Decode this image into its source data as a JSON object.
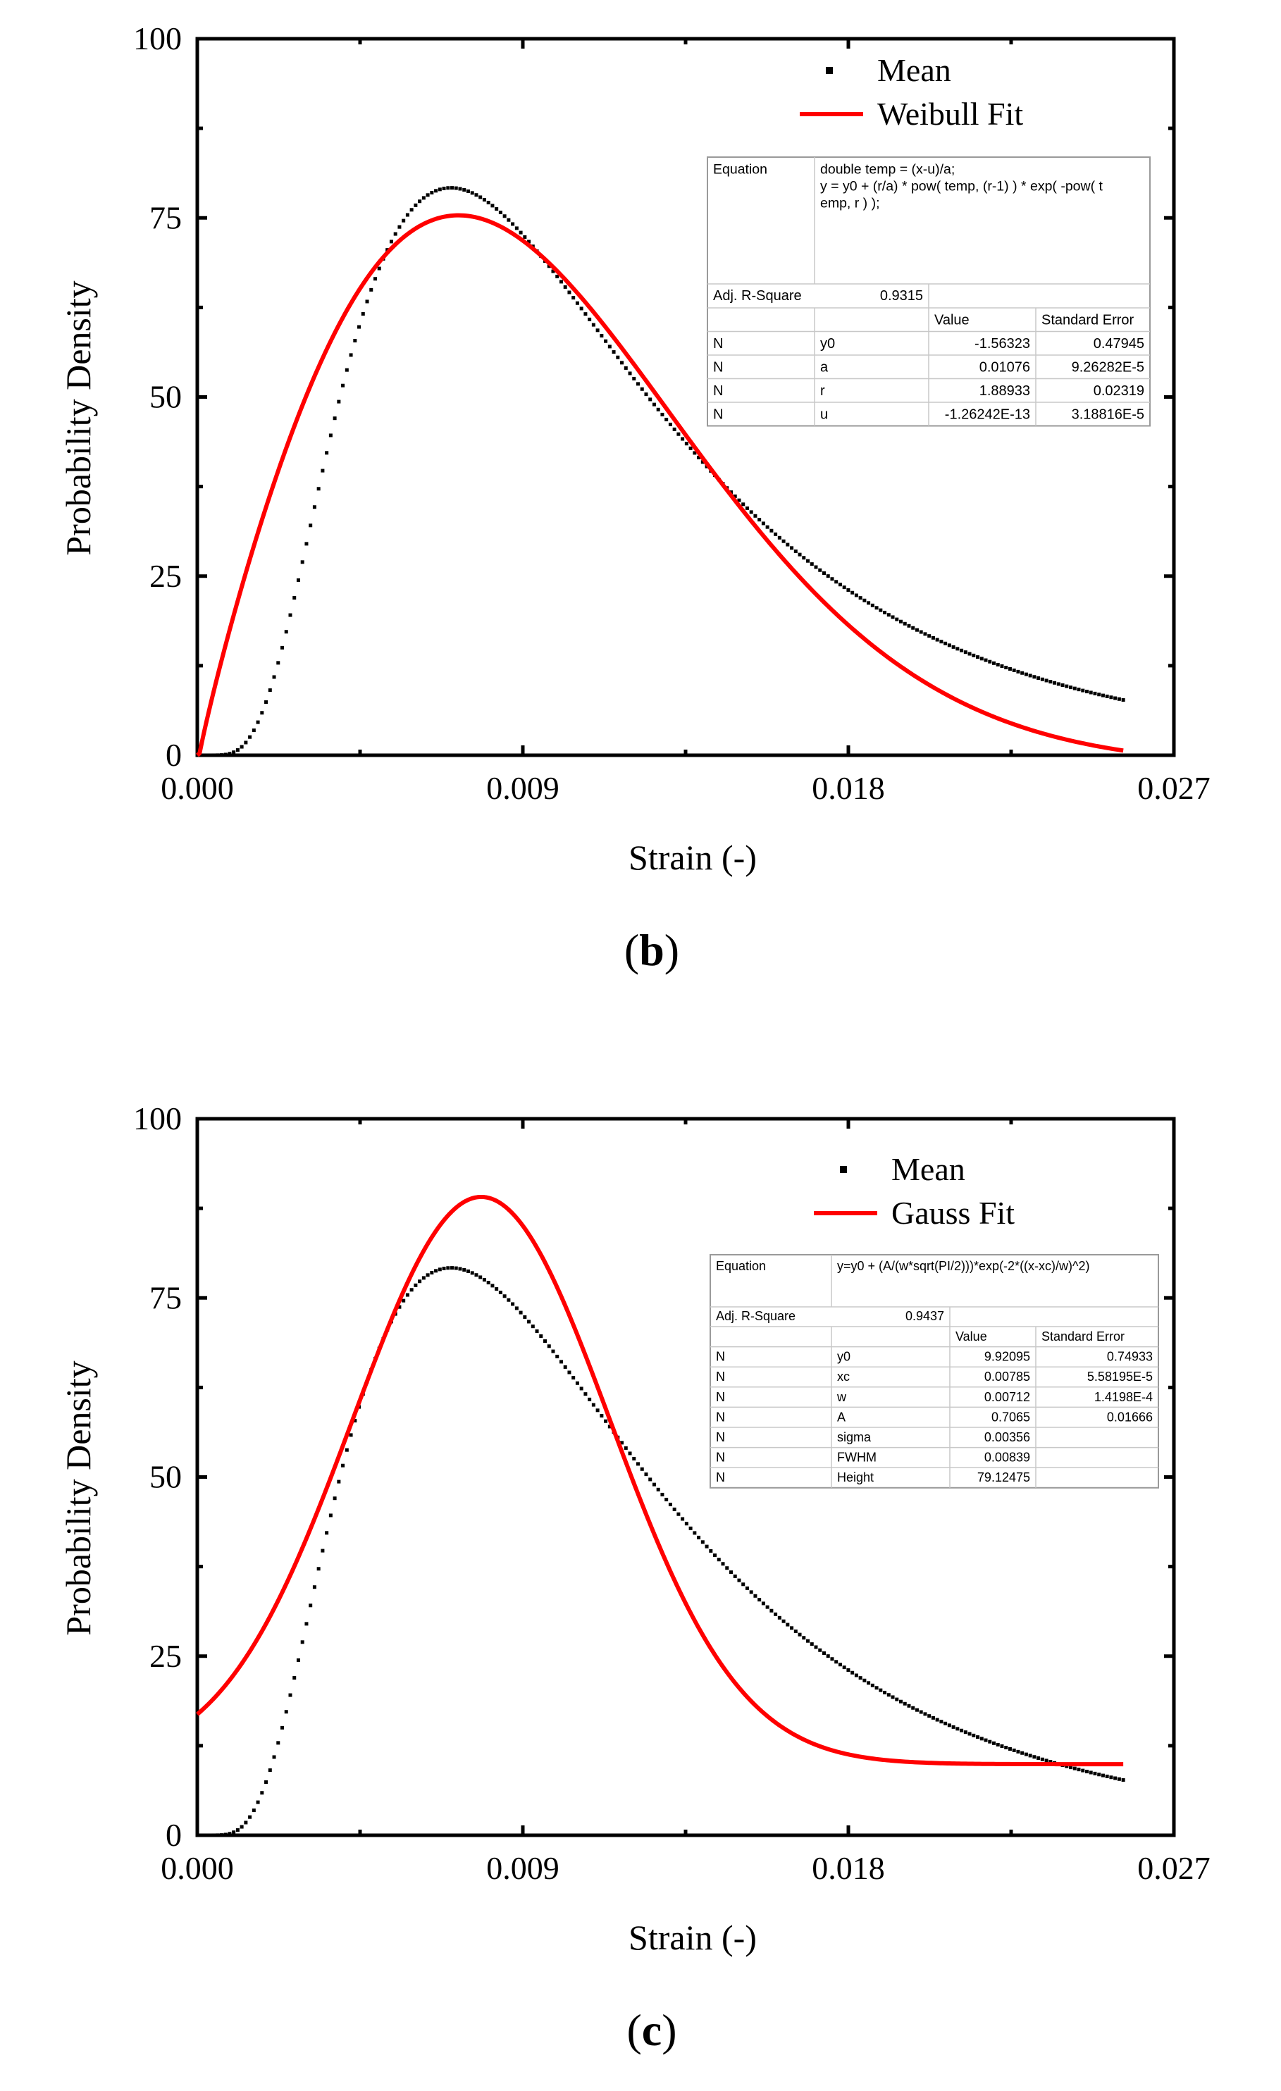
{
  "chart_data": [
    {
      "type": "line",
      "panel_label": "(b)",
      "title": "",
      "xlabel": "Strain (-)",
      "ylabel": "Probability Density",
      "xlim": [
        0,
        0.027
      ],
      "ylim": [
        0,
        100
      ],
      "xticks": [
        "0.000",
        "0.009",
        "0.018",
        "0.027"
      ],
      "yticks": [
        "0",
        "25",
        "50",
        "75",
        "100"
      ],
      "legend_position": "top-right",
      "series": [
        {
          "name": "Mean",
          "style": "markers",
          "color": "#000000",
          "model": "lognormal",
          "params": {
            "mu": -4.6,
            "sigma": 0.6
          },
          "x_start": 0,
          "x_end": 0.0256,
          "n_points": 230
        },
        {
          "name": "Weibull Fit",
          "style": "line",
          "color": "#ff0000",
          "model": "weibull",
          "params": {
            "y0": -1.56323,
            "a": 0.01076,
            "r": 1.88933,
            "u": -1.26242e-13
          },
          "x_start": 0,
          "x_end": 0.0256
        }
      ],
      "fit_table": {
        "equation_label": "Equation",
        "equation_lines": [
          "double temp = (x-u)/a;",
          "y = y0 + (r/a) * pow( temp, (r-1) ) * exp( -pow( t",
          "emp, r ) );"
        ],
        "adj_label": "Adj. R-Square",
        "adj_value": "0.9315",
        "header": [
          "",
          "",
          "Value",
          "Standard Error"
        ],
        "rows": [
          [
            "N",
            "y0",
            "-1.56323",
            "0.47945"
          ],
          [
            "N",
            "a",
            "0.01076",
            "9.26282E-5"
          ],
          [
            "N",
            "r",
            "1.88933",
            "0.02319"
          ],
          [
            "N",
            "u",
            "-1.26242E-13",
            "3.18816E-5"
          ]
        ]
      }
    },
    {
      "type": "line",
      "panel_label": "(c)",
      "title": "",
      "xlabel": "Strain (-)",
      "ylabel": "Probability Density",
      "xlim": [
        0,
        0.027
      ],
      "ylim": [
        0,
        100
      ],
      "xticks": [
        "0.000",
        "0.009",
        "0.018",
        "0.027"
      ],
      "yticks": [
        "0",
        "25",
        "50",
        "75",
        "100"
      ],
      "legend_position": "top-right",
      "series": [
        {
          "name": "Mean",
          "style": "markers",
          "color": "#000000",
          "model": "lognormal",
          "params": {
            "mu": -4.6,
            "sigma": 0.6
          },
          "x_start": 0,
          "x_end": 0.0256,
          "n_points": 230
        },
        {
          "name": "Gauss Fit",
          "style": "line",
          "color": "#ff0000",
          "model": "gauss",
          "params": {
            "y0": 9.92095,
            "xc": 0.00785,
            "w": 0.00712,
            "A": 0.7065
          },
          "x_start": 0,
          "x_end": 0.0256
        }
      ],
      "fit_table": {
        "equation_label": "Equation",
        "equation_lines": [
          "y=y0 + (A/(w*sqrt(PI/2)))*exp(-2*((x-xc)/w)^2)"
        ],
        "adj_label": "Adj. R-Square",
        "adj_value": "0.9437",
        "header": [
          "",
          "",
          "Value",
          "Standard Error"
        ],
        "rows": [
          [
            "N",
            "y0",
            "9.92095",
            "0.74933"
          ],
          [
            "N",
            "xc",
            "0.00785",
            "5.58195E-5"
          ],
          [
            "N",
            "w",
            "0.00712",
            "1.4198E-4"
          ],
          [
            "N",
            "A",
            "0.7065",
            "0.01666"
          ],
          [
            "N",
            "sigma",
            "0.00356",
            ""
          ],
          [
            "N",
            "FWHM",
            "0.00839",
            ""
          ],
          [
            "N",
            "Height",
            "79.12475",
            ""
          ]
        ]
      }
    }
  ]
}
